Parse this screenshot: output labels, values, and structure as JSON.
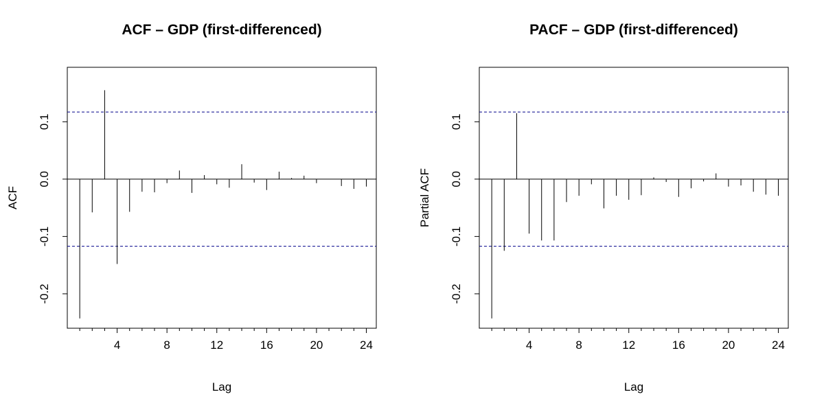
{
  "chart_data": [
    {
      "type": "bar",
      "title": "ACF – GDP (first-differenced)",
      "xlabel": "Lag",
      "ylabel": "ACF",
      "x": [
        1,
        2,
        3,
        4,
        5,
        6,
        7,
        8,
        9,
        10,
        11,
        12,
        13,
        14,
        15,
        16,
        17,
        18,
        19,
        20,
        21,
        22,
        23,
        24
      ],
      "values": [
        -0.243,
        -0.058,
        0.155,
        -0.148,
        -0.057,
        -0.022,
        -0.023,
        -0.007,
        0.015,
        -0.024,
        0.007,
        -0.009,
        -0.015,
        0.026,
        -0.006,
        -0.019,
        0.013,
        0.002,
        0.006,
        -0.007,
        0.0,
        -0.012,
        -0.017,
        -0.013
      ],
      "ci": 0.117,
      "xlim": [
        0,
        24.8
      ],
      "ylim": [
        -0.26,
        0.195
      ],
      "xticks": [
        4,
        8,
        12,
        16,
        20,
        24
      ],
      "yticks": [
        -0.2,
        -0.1,
        0.0,
        0.1
      ],
      "ytick_labels": [
        "-0.2",
        "-0.1",
        "0.0",
        "0.1"
      ]
    },
    {
      "type": "bar",
      "title": "PACF – GDP (first-differenced)",
      "xlabel": "Lag",
      "ylabel": "Partial ACF",
      "x": [
        1,
        2,
        3,
        4,
        5,
        6,
        7,
        8,
        9,
        10,
        11,
        12,
        13,
        14,
        15,
        16,
        17,
        18,
        19,
        20,
        21,
        22,
        23,
        24
      ],
      "values": [
        -0.243,
        -0.125,
        0.115,
        -0.095,
        -0.107,
        -0.107,
        -0.04,
        -0.029,
        -0.009,
        -0.051,
        -0.029,
        -0.036,
        -0.028,
        0.003,
        -0.005,
        -0.031,
        -0.016,
        -0.004,
        0.01,
        -0.013,
        -0.011,
        -0.022,
        -0.027,
        -0.029
      ],
      "ci": 0.117,
      "xlim": [
        0,
        24.8
      ],
      "ylim": [
        -0.26,
        0.195
      ],
      "xticks": [
        4,
        8,
        12,
        16,
        20,
        24
      ],
      "yticks": [
        -0.2,
        -0.1,
        0.0,
        0.1
      ],
      "ytick_labels": [
        "-0.2",
        "-0.1",
        "0.0",
        "0.1"
      ]
    }
  ]
}
